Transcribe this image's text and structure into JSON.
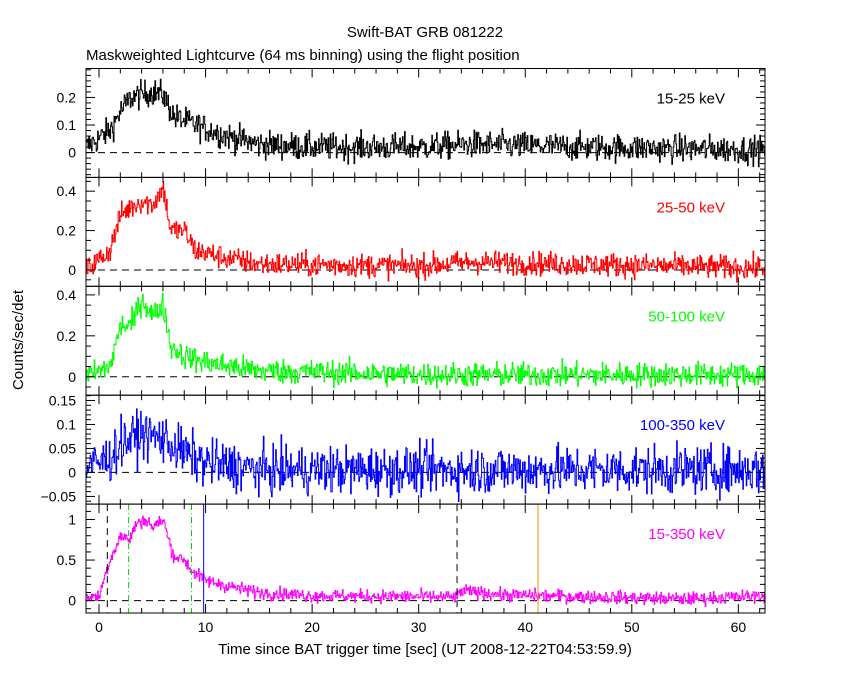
{
  "chart_data": {
    "type": "line",
    "title": "Swift-BAT GRB 081222",
    "subtitle": "Maskweighted Lightcurve (64 ms binning) using the flight position",
    "xlabel": "Time since BAT trigger time [sec] (UT 2008-12-22T04:53:59.9)",
    "ylabel": "Counts/sec/det",
    "xlim": [
      -1.22,
      62.5
    ],
    "xticks": [
      0,
      10,
      20,
      30,
      40,
      50,
      60
    ],
    "bin_sec": 0.064,
    "grid": false,
    "panels": [
      {
        "name": "15-25 keV",
        "color": "#000000",
        "ylim": [
          -0.09,
          0.305
        ],
        "yticks": [
          0,
          0.1,
          0.2
        ],
        "minor": 0.02,
        "noise": 0.025,
        "profile": [
          [
            -1.2,
            0.02
          ],
          [
            1,
            0.08
          ],
          [
            2,
            0.15
          ],
          [
            3,
            0.2
          ],
          [
            5,
            0.22
          ],
          [
            6,
            0.21
          ],
          [
            7,
            0.13
          ],
          [
            9,
            0.1
          ],
          [
            12,
            0.06
          ],
          [
            15,
            0.03
          ],
          [
            20,
            0.02
          ],
          [
            30,
            0.02
          ],
          [
            35,
            0.03
          ],
          [
            45,
            0.02
          ],
          [
            62.5,
            0.01
          ]
        ]
      },
      {
        "name": "25-50 keV",
        "color": "#ff0000",
        "ylim": [
          -0.083,
          0.47
        ],
        "yticks": [
          0,
          0.2,
          0.4
        ],
        "minor": 0.05,
        "noise": 0.03,
        "profile": [
          [
            -1.2,
            0
          ],
          [
            1,
            0.1
          ],
          [
            2,
            0.28
          ],
          [
            3,
            0.32
          ],
          [
            4,
            0.35
          ],
          [
            5,
            0.33
          ],
          [
            6,
            0.42
          ],
          [
            6.7,
            0.2
          ],
          [
            8,
            0.2
          ],
          [
            9,
            0.1
          ],
          [
            12,
            0.06
          ],
          [
            15,
            0.03
          ],
          [
            30,
            0.02
          ],
          [
            35,
            0.04
          ],
          [
            62.5,
            0.01
          ]
        ]
      },
      {
        "name": "50-100 keV",
        "color": "#00ff00",
        "ylim": [
          -0.09,
          0.442
        ],
        "yticks": [
          0,
          0.2,
          0.4
        ],
        "minor": 0.05,
        "noise": 0.03,
        "profile": [
          [
            -1.2,
            0
          ],
          [
            1,
            0.05
          ],
          [
            2,
            0.25
          ],
          [
            3,
            0.25
          ],
          [
            4,
            0.38
          ],
          [
            5,
            0.3
          ],
          [
            6,
            0.35
          ],
          [
            6.7,
            0.15
          ],
          [
            8,
            0.1
          ],
          [
            10,
            0.07
          ],
          [
            15,
            0.03
          ],
          [
            30,
            0.01
          ],
          [
            62.5,
            0.01
          ]
        ]
      },
      {
        "name": "100-350 keV",
        "color": "#0000ff",
        "ylim": [
          -0.066,
          0.161
        ],
        "yticks": [
          -0.05,
          0,
          0.05,
          0.1,
          0.15
        ],
        "yticklabels": [
          "−0.05",
          "0",
          "0.05",
          "0.1",
          "0.15"
        ],
        "minor": 0.01,
        "noise": 0.025,
        "profile": [
          [
            -1.2,
            0.01
          ],
          [
            1,
            0.03
          ],
          [
            2,
            0.06
          ],
          [
            4,
            0.08
          ],
          [
            6,
            0.07
          ],
          [
            8,
            0.04
          ],
          [
            10,
            0.02
          ],
          [
            15,
            0.005
          ],
          [
            62.5,
            0.005
          ]
        ]
      },
      {
        "name": "15-350 keV",
        "color": "#ff00ff",
        "ylim": [
          -0.153,
          1.19
        ],
        "yticks": [
          0,
          0.5,
          1
        ],
        "minor": 0.1,
        "noise": 0.04,
        "profile": [
          [
            -1.2,
            0.05
          ],
          [
            0,
            0.05
          ],
          [
            0.5,
            0.3
          ],
          [
            1,
            0.5
          ],
          [
            2,
            0.8
          ],
          [
            2.8,
            0.75
          ],
          [
            3.5,
            0.95
          ],
          [
            4.5,
            1.0
          ],
          [
            5,
            0.9
          ],
          [
            6,
            1.0
          ],
          [
            6.5,
            0.75
          ],
          [
            7,
            0.55
          ],
          [
            8,
            0.5
          ],
          [
            8.8,
            0.35
          ],
          [
            10,
            0.25
          ],
          [
            12,
            0.18
          ],
          [
            15,
            0.1
          ],
          [
            20,
            0.06
          ],
          [
            30,
            0.05
          ],
          [
            33.6,
            0.04
          ],
          [
            34,
            0.12
          ],
          [
            38,
            0.07
          ],
          [
            45,
            0.05
          ],
          [
            55,
            0.02
          ],
          [
            62.5,
            0.06
          ]
        ],
        "markers": [
          {
            "t": 0.78,
            "color": "#000000",
            "style": "dashed"
          },
          {
            "t": 2.78,
            "color": "#00cc00",
            "style": "dashdot"
          },
          {
            "t": 8.68,
            "color": "#00cc00",
            "style": "dashdot"
          },
          {
            "t": 9.82,
            "color": "#0000ff",
            "style": "solid"
          },
          {
            "t": 33.6,
            "color": "#000000",
            "style": "dashed"
          },
          {
            "t": 41.2,
            "color": "#ff8800",
            "style": "solid"
          }
        ]
      }
    ]
  }
}
